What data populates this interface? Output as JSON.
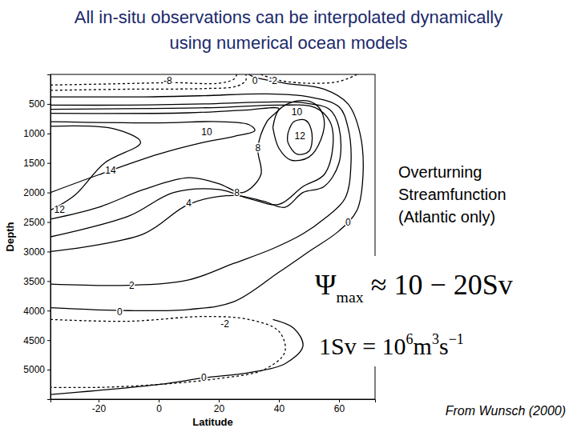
{
  "chart_data": {
    "type": "contour",
    "title": [
      "All in-situ observations can be interpolated dynamically",
      "using numerical ocean models"
    ],
    "xlabel": "Latitude",
    "ylabel": "Depth",
    "xlim": [
      -36,
      72
    ],
    "ylim": [
      0,
      5500
    ],
    "xticks": [
      -20,
      0,
      20,
      40,
      60
    ],
    "yticks": [
      500,
      1000,
      1500,
      2000,
      2500,
      3000,
      3500,
      4000,
      4500,
      5000
    ],
    "contours": [
      {
        "level": -8,
        "x": [
          -36,
          -15,
          5,
          20,
          25,
          26
        ],
        "y": [
          180,
          160,
          140,
          150,
          80,
          0
        ]
      },
      {
        "level": -4,
        "x": [
          -36,
          -10,
          15,
          26,
          29,
          29
        ],
        "y": [
          270,
          250,
          240,
          200,
          100,
          0
        ]
      },
      {
        "level": -2,
        "x": [
          34,
          40,
          50,
          60,
          66
        ],
        "y": [
          0,
          100,
          150,
          120,
          0
        ]
      },
      {
        "level": 0,
        "x": [
          -36,
          -10,
          10,
          25,
          40,
          50,
          60,
          66,
          68,
          67,
          63,
          55,
          42,
          32,
          30
        ],
        "y": [
          3950,
          4000,
          3980,
          3850,
          3350,
          3000,
          2650,
          2300,
          1700,
          1000,
          500,
          250,
          150,
          50,
          0
        ]
      },
      {
        "level": 2,
        "x": [
          -36,
          -10,
          10,
          25,
          38,
          48,
          55,
          62,
          64,
          63,
          60,
          50,
          35,
          15,
          -5,
          -36
        ],
        "y": [
          3550,
          3570,
          3480,
          3200,
          2950,
          2700,
          2450,
          2100,
          1500,
          900,
          550,
          380,
          330,
          360,
          380,
          380
        ]
      },
      {
        "level": 4,
        "x": [
          -36,
          -5,
          10,
          25,
          35,
          42,
          48,
          55,
          60,
          60,
          57,
          48,
          35,
          15,
          -10,
          -36
        ],
        "y": [
          3000,
          2700,
          2200,
          2050,
          2150,
          2250,
          2000,
          1900,
          1500,
          900,
          600,
          480,
          470,
          500,
          520,
          520
        ]
      },
      {
        "level": 6,
        "x": [
          -36,
          -10,
          5,
          20,
          30,
          40,
          48,
          55,
          58,
          57,
          52,
          40,
          20,
          -36
        ],
        "y": [
          2750,
          2400,
          2000,
          1950,
          2100,
          2200,
          1900,
          1700,
          1200,
          800,
          560,
          520,
          560,
          590
        ]
      },
      {
        "level": 8,
        "x": [
          -36,
          -20,
          -5,
          10,
          20,
          28,
          34,
          33,
          36,
          40,
          30,
          10,
          -36
        ],
        "y": [
          2450,
          2250,
          1950,
          1750,
          1850,
          2000,
          1700,
          1250,
          800,
          580,
          600,
          650,
          660
        ]
      },
      {
        "level": 10,
        "x": [
          -36,
          -20,
          0,
          15,
          25,
          32,
          30,
          20,
          0,
          -36
        ],
        "y": [
          2000,
          1700,
          1350,
          1150,
          1050,
          950,
          850,
          800,
          820,
          800
        ]
      },
      {
        "level": 10,
        "x": [
          38,
          40,
          46,
          52,
          55,
          54,
          50,
          44,
          40,
          38
        ],
        "y": [
          900,
          600,
          450,
          500,
          750,
          1100,
          1400,
          1450,
          1250,
          900
        ]
      },
      {
        "level": 12,
        "x": [
          43,
          45,
          49,
          51,
          50,
          46,
          43,
          43
        ],
        "y": [
          1000,
          800,
          780,
          1000,
          1300,
          1350,
          1150,
          1000
        ]
      },
      {
        "level": 12,
        "x": [
          -36,
          -28,
          -18,
          -6,
          -15,
          -36
        ],
        "y": [
          2300,
          2050,
          1500,
          1150,
          920,
          880
        ]
      },
      {
        "level": -2,
        "x": [
          -36,
          -10,
          15,
          30,
          40,
          42,
          35,
          20,
          0,
          -20,
          -36
        ],
        "y": [
          4150,
          4180,
          4100,
          4150,
          4350,
          4700,
          5000,
          5150,
          5250,
          5300,
          5300
        ]
      },
      {
        "level": 0,
        "x": [
          -36,
          0,
          15,
          30,
          42,
          48,
          45,
          38
        ],
        "y": [
          5420,
          5250,
          5140,
          5050,
          4900,
          4600,
          4300,
          4150
        ]
      }
    ],
    "contour_labels": [
      {
        "value": -8,
        "x": 3,
        "y": 110
      },
      {
        "value": 0,
        "x": 32,
        "y": 110
      },
      {
        "value": -2,
        "x": 38,
        "y": 110
      },
      {
        "value": 10,
        "x": 16,
        "y": 970
      },
      {
        "value": 10,
        "x": 46,
        "y": 640
      },
      {
        "value": 12,
        "x": 47,
        "y": 1040
      },
      {
        "value": 14,
        "x": -16,
        "y": 1620
      },
      {
        "value": 12,
        "x": -33,
        "y": 2290
      },
      {
        "value": 8,
        "x": 33,
        "y": 1250
      },
      {
        "value": 8,
        "x": 26,
        "y": 2010
      },
      {
        "value": 4,
        "x": 10,
        "y": 2180
      },
      {
        "value": 0,
        "x": 63,
        "y": 2500
      },
      {
        "value": 2,
        "x": -9,
        "y": 3570
      },
      {
        "value": 0,
        "x": -13,
        "y": 4030
      },
      {
        "value": -2,
        "x": 22,
        "y": 4220
      },
      {
        "value": 0,
        "x": 15,
        "y": 5140
      }
    ],
    "note": [
      "Overturning",
      "Streamfunction",
      "(Atlantic only)"
    ],
    "formulas": [
      [
        {
          "base": "Ψ",
          "sub": "max"
        },
        {
          "base": " ≈ 10 − 20Sv"
        }
      ],
      [
        {
          "base": "1Sv = 10",
          "sup": "6"
        },
        {
          "base": "m",
          "sup": "3"
        },
        {
          "base": "s",
          "sup": "−1"
        }
      ]
    ],
    "source": "From Wunsch (2000)"
  }
}
